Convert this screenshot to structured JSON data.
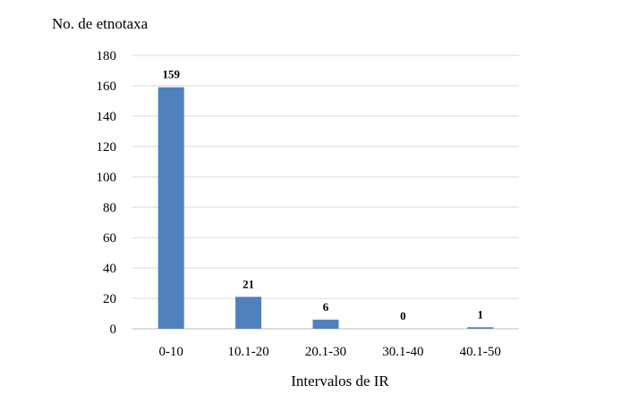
{
  "chart_data": {
    "type": "bar",
    "ylabel": "No. de etnotaxa",
    "xlabel": "Intervalos de IR",
    "categories": [
      "0-10",
      "10.1-20",
      "20.1-30",
      "30.1-40",
      "40.1-50"
    ],
    "values": [
      159,
      21,
      6,
      0,
      1
    ],
    "data_labels": [
      "159",
      "21",
      "6",
      "0",
      "1"
    ],
    "ylim": [
      0,
      180
    ],
    "yticks": [
      0,
      20,
      40,
      60,
      80,
      100,
      120,
      140,
      160,
      180
    ],
    "grid": true,
    "legend": "none"
  },
  "colors": {
    "bar": "#4F81BD",
    "grid": "#D9D9D9",
    "axis": "#BFBFBF",
    "text": "#000000"
  }
}
